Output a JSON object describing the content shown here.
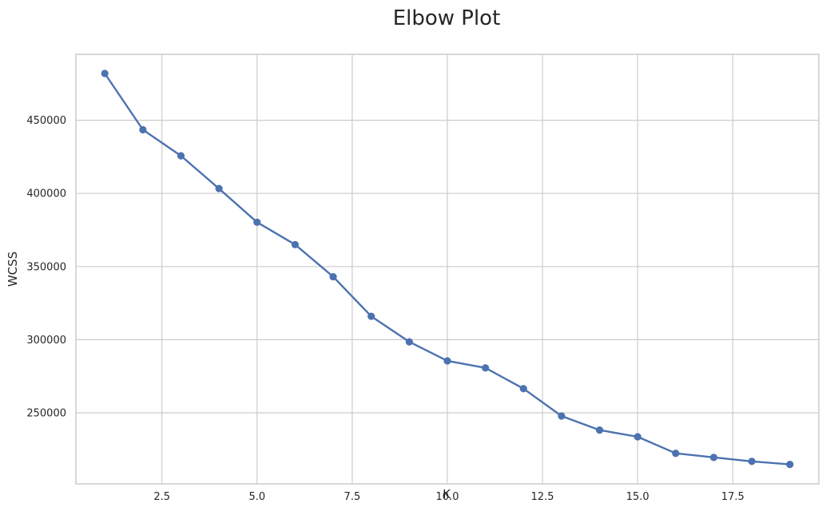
{
  "chart_data": {
    "type": "line",
    "title": "Elbow Plot",
    "xlabel": "K",
    "ylabel": "WCSS",
    "xlim": [
      0.24,
      19.76
    ],
    "ylim": [
      201400,
      495100
    ],
    "x_ticks": [
      2.5,
      5.0,
      7.5,
      10.0,
      12.5,
      15.0,
      17.5
    ],
    "x_tick_labels": [
      "2.5",
      "5.0",
      "7.5",
      "10.0",
      "12.5",
      "15.0",
      "17.5"
    ],
    "y_ticks": [
      250000,
      300000,
      350000,
      400000,
      450000
    ],
    "y_tick_labels": [
      "250000",
      "300000",
      "350000",
      "400000",
      "450000"
    ],
    "grid": true,
    "color": "#4c72b0",
    "marker": "circle",
    "series": [
      {
        "x": [
          1,
          2,
          3,
          4,
          5,
          6,
          7,
          8,
          9,
          10,
          11,
          12,
          13,
          14,
          15,
          16,
          17,
          18,
          19
        ],
        "values": [
          482000,
          443500,
          425700,
          403300,
          380300,
          365000,
          343000,
          316000,
          298500,
          285500,
          280700,
          266500,
          247800,
          238200,
          233600,
          222300,
          219500,
          216800,
          214700
        ]
      }
    ]
  }
}
